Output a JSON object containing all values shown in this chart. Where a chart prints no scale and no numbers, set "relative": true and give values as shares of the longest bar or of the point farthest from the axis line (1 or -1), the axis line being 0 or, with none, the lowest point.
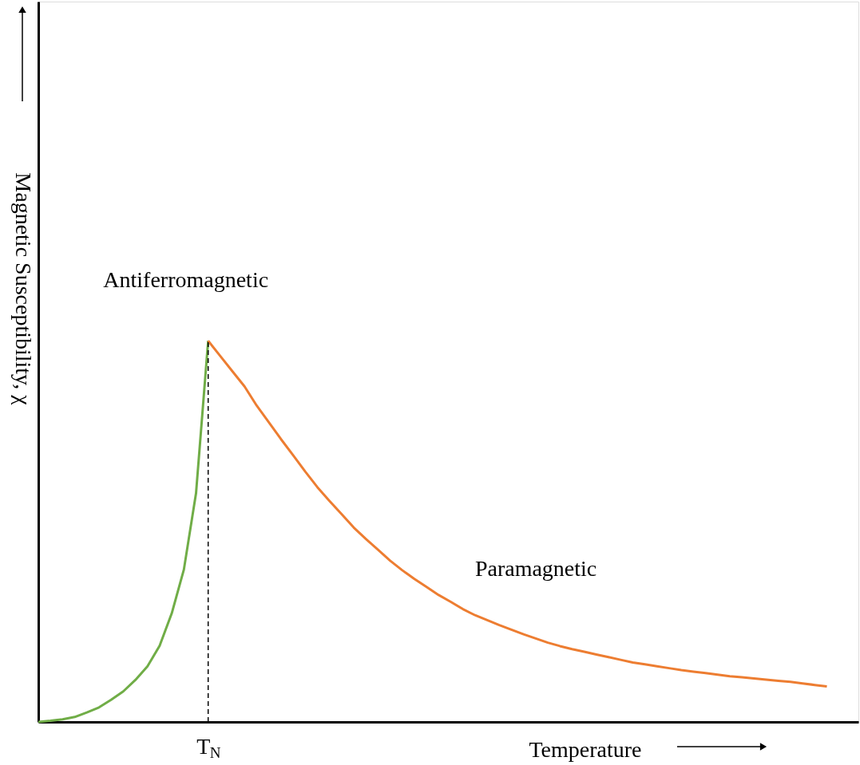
{
  "chart_data": {
    "type": "line",
    "relative": true,
    "xlabel": "Temperature",
    "ylabel": "Magnetic Susceptibility, χ",
    "categories": [
      null,
      null,
      null,
      null,
      null,
      null,
      null,
      null,
      null,
      null,
      null,
      null,
      null,
      null,
      null,
      null,
      null,
      null,
      null,
      null,
      null,
      null,
      null,
      null,
      null,
      null,
      null,
      null,
      null,
      null,
      null,
      null,
      null,
      null,
      null,
      null,
      null,
      null,
      null,
      null,
      null,
      null,
      null,
      null,
      null,
      null,
      null,
      null,
      null,
      null,
      null,
      null,
      null,
      null,
      null,
      null,
      null,
      null,
      null,
      null,
      null,
      null,
      null,
      null,
      null,
      null
    ],
    "annotations": [
      "T$_{N}$"
    ],
    "series": [
      {
        "name": "Antiferromagnetic",
        "color": "#70ad47",
        "values": [
          0,
          0.003,
          0.007,
          0.013,
          0.025,
          0.038,
          0.058,
          0.08,
          0.11,
          0.146,
          0.2,
          0.285,
          0.4,
          0.6,
          1,
          null,
          null,
          null,
          null,
          null,
          null,
          null,
          null,
          null,
          null,
          null,
          null,
          null,
          null,
          null,
          null,
          null,
          null,
          null,
          null,
          null,
          null,
          null,
          null,
          null,
          null,
          null,
          null,
          null,
          null,
          null,
          null,
          null,
          null,
          null,
          null,
          null,
          null,
          null,
          null,
          null,
          null,
          null,
          null,
          null,
          null,
          null,
          null,
          null,
          null,
          null
        ]
      },
      {
        "name": "Paramagnetic",
        "color": "#ed7d31",
        "values": [
          null,
          null,
          null,
          null,
          null,
          null,
          null,
          null,
          null,
          null,
          null,
          null,
          null,
          null,
          1,
          0.96,
          0.92,
          0.88,
          0.83,
          0.786,
          0.742,
          0.7,
          0.657,
          0.616,
          0.58,
          0.545,
          0.51,
          0.48,
          0.452,
          0.423,
          0.398,
          0.375,
          0.354,
          0.333,
          0.315,
          0.296,
          0.28,
          0.267,
          0.254,
          0.242,
          0.23,
          0.219,
          0.208,
          0.199,
          0.191,
          0.184,
          0.177,
          0.17,
          0.163,
          0.156,
          0.151,
          0.146,
          0.141,
          0.136,
          0.132,
          0.128,
          0.124,
          0.12,
          0.117,
          0.114,
          0.111,
          0.108,
          0.105,
          0.101,
          0.097,
          0.093
        ]
      }
    ],
    "ref_lines": [
      {
        "axis": "x",
        "color": "#000000",
        "line_style": "dashed"
      }
    ],
    "grid": false,
    "line_style": "solid",
    "marker": "none"
  }
}
